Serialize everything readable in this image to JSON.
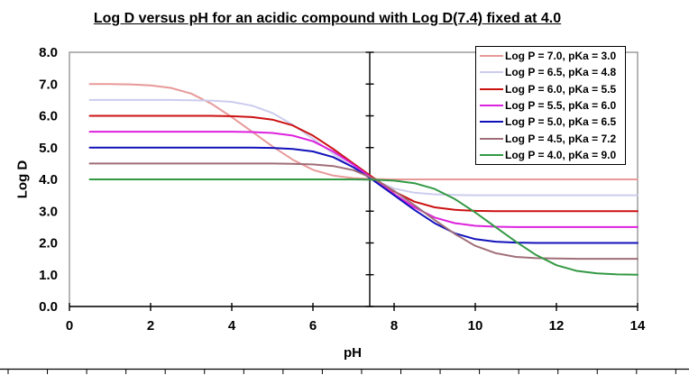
{
  "title": "Log D versus pH for an acidic compound with Log D(7.4) fixed at 4.0",
  "colors": {
    "plot_border": "#848484",
    "axis": "#000000",
    "background": "#ffffff",
    "legend_border": "#000000"
  },
  "chart_data": {
    "type": "line",
    "title": "Log D versus pH for an acidic compound with Log D(7.4) fixed at 4.0",
    "xlabel": "pH",
    "ylabel": "Log D",
    "xlim": [
      0,
      14
    ],
    "ylim": [
      0.0,
      8.0
    ],
    "x_tick_values": [
      0,
      2,
      4,
      6,
      8,
      10,
      12,
      14
    ],
    "x_tick_labels": [
      "0",
      "2",
      "4",
      "6",
      "8",
      "10",
      "12",
      "14"
    ],
    "y_tick_values": [
      0,
      1,
      2,
      3,
      4,
      5,
      6,
      7,
      8
    ],
    "y_tick_labels": [
      "0.0",
      "1.0",
      "2.0",
      "3.0",
      "4.0",
      "5.0",
      "6.0",
      "7.0",
      "8.0"
    ],
    "y_axis_cross_x": 7.4,
    "grid": false,
    "legend_position": "top-right-inside",
    "crossing_point": {
      "pH": 7.4,
      "logD": 4.0
    },
    "x": [
      0.5,
      1.0,
      1.5,
      2.0,
      2.5,
      3.0,
      3.5,
      4.0,
      4.5,
      5.0,
      5.5,
      6.0,
      6.5,
      7.0,
      7.5,
      8.0,
      8.5,
      9.0,
      9.5,
      10.0,
      10.5,
      11.0,
      11.5,
      12.0,
      12.5,
      13.0,
      13.5,
      14.0
    ],
    "series": [
      {
        "name": "Log P = 7.0, pKa = 3.0",
        "logP": 7.0,
        "pKa": 3.0,
        "color": "#E89999",
        "values": [
          7.0,
          7.0,
          6.99,
          6.96,
          6.88,
          6.7,
          6.38,
          5.96,
          5.5,
          5.04,
          4.62,
          4.3,
          4.12,
          4.04,
          4.01,
          4.0,
          4.0,
          4.0,
          4.0,
          4.0,
          4.0,
          4.0,
          4.0,
          4.0,
          4.0,
          4.0,
          4.0,
          4.0
        ]
      },
      {
        "name": "Log P = 6.5, pKa = 4.8",
        "logP": 6.5,
        "pKa": 4.8,
        "color": "#CCCCEE",
        "values": [
          6.5,
          6.5,
          6.5,
          6.5,
          6.5,
          6.49,
          6.48,
          6.44,
          6.32,
          6.09,
          5.72,
          5.28,
          4.81,
          4.36,
          3.98,
          3.71,
          3.58,
          3.53,
          3.51,
          3.5,
          3.5,
          3.5,
          3.5,
          3.5,
          3.5,
          3.5,
          3.5,
          3.5
        ]
      },
      {
        "name": "Log P = 6.0, pKa = 5.5",
        "logP": 6.0,
        "pKa": 5.5,
        "color": "#CC1111",
        "values": [
          6.0,
          6.0,
          6.0,
          6.0,
          6.0,
          6.0,
          6.0,
          5.99,
          5.96,
          5.88,
          5.7,
          5.38,
          4.96,
          4.5,
          4.04,
          3.62,
          3.3,
          3.12,
          3.04,
          3.01,
          3.0,
          3.0,
          3.0,
          3.0,
          3.0,
          3.0,
          3.0,
          3.0
        ]
      },
      {
        "name": "Log P = 5.5, pKa = 6.0",
        "logP": 5.5,
        "pKa": 6.0,
        "color": "#DD22DD",
        "values": [
          5.5,
          5.5,
          5.5,
          5.5,
          5.5,
          5.5,
          5.5,
          5.5,
          5.49,
          5.46,
          5.38,
          5.2,
          4.88,
          4.46,
          4.0,
          3.54,
          3.12,
          2.8,
          2.62,
          2.54,
          2.51,
          2.5,
          2.5,
          2.5,
          2.5,
          2.5,
          2.5,
          2.5
        ]
      },
      {
        "name": "Log P = 5.0, pKa = 6.5",
        "logP": 5.0,
        "pKa": 6.5,
        "color": "#1111BB",
        "values": [
          5.0,
          5.0,
          5.0,
          5.0,
          5.0,
          5.0,
          5.0,
          5.0,
          5.0,
          4.99,
          4.96,
          4.88,
          4.7,
          4.38,
          3.96,
          3.5,
          3.04,
          2.62,
          2.3,
          2.12,
          2.04,
          2.01,
          2.0,
          2.0,
          2.0,
          2.0,
          2.0,
          2.0
        ]
      },
      {
        "name": "Log P = 4.5, pKa = 7.2",
        "logP": 4.5,
        "pKa": 7.2,
        "color": "#A06E78",
        "values": [
          4.5,
          4.5,
          4.5,
          4.5,
          4.5,
          4.5,
          4.5,
          4.5,
          4.5,
          4.5,
          4.49,
          4.47,
          4.42,
          4.29,
          4.02,
          3.64,
          3.19,
          2.72,
          2.28,
          1.91,
          1.68,
          1.56,
          1.52,
          1.51,
          1.5,
          1.5,
          1.5,
          1.5
        ]
      },
      {
        "name": "Log P = 4.0, pKa = 9.0",
        "logP": 4.0,
        "pKa": 9.0,
        "color": "#339944",
        "values": [
          4.0,
          4.0,
          4.0,
          4.0,
          4.0,
          4.0,
          4.0,
          4.0,
          4.0,
          4.0,
          4.0,
          4.0,
          4.0,
          4.0,
          3.99,
          3.96,
          3.88,
          3.7,
          3.38,
          2.96,
          2.5,
          2.04,
          1.62,
          1.3,
          1.12,
          1.04,
          1.01,
          1.0
        ]
      }
    ]
  }
}
